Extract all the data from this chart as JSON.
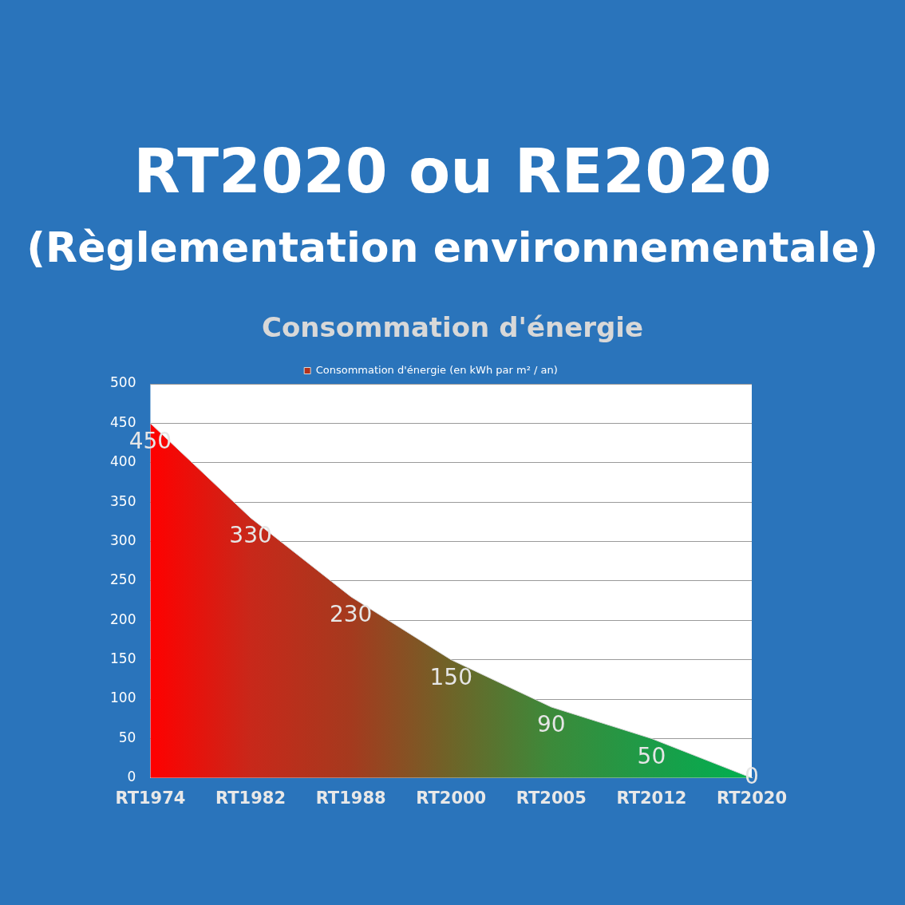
{
  "chart_data": {
    "type": "area",
    "title": "RT2020 ou RE2020",
    "subtitle": "(Règlementation environnementale)",
    "annotations": [
      "Consommation d'énergie"
    ],
    "categories": [
      "RT1974",
      "RT1982",
      "RT1988",
      "RT2000",
      "RT2005",
      "RT2012",
      "RT2020"
    ],
    "series": [
      {
        "name": "Consommation d'énergie (en kWh par m² / an)",
        "colors": [
          "#ff0000",
          "#c8281a",
          "#a53a1e",
          "#6e6428",
          "#3c8a3a",
          "#1c9c48",
          "#00b050"
        ],
        "values": [
          450,
          330,
          230,
          150,
          90,
          50,
          0
        ]
      }
    ],
    "ylim": [
      0,
      500
    ],
    "yticks": [
      0,
      50,
      100,
      150,
      200,
      250,
      300,
      350,
      400,
      450,
      500
    ],
    "grid": "y",
    "legend": "top",
    "data_labels": true
  }
}
